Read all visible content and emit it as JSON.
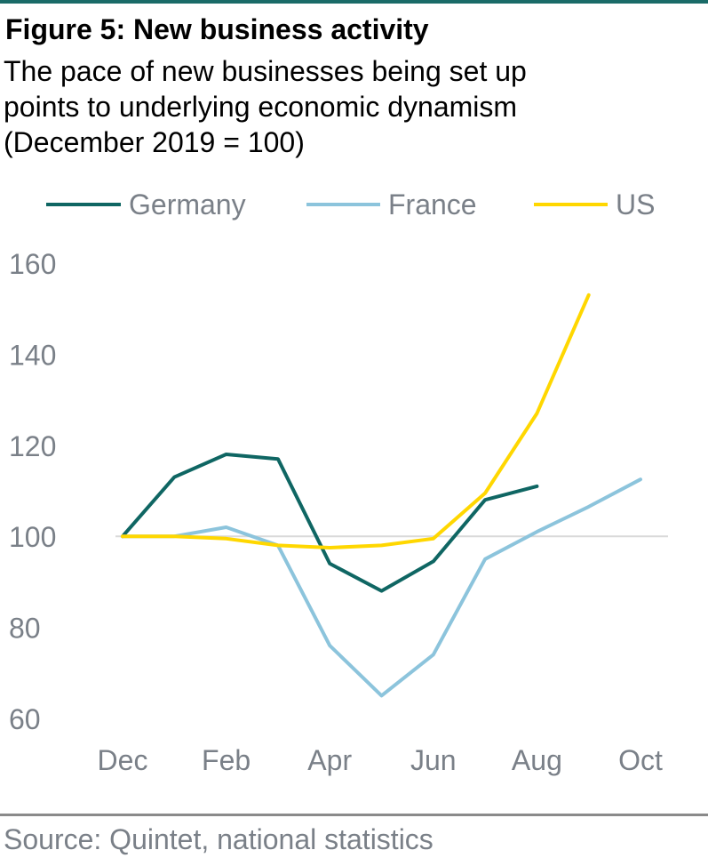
{
  "title": "Figure 5: New business activity",
  "subtitle_lines": [
    "The pace of new businesses being set up",
    "points to underlying economic dynamism",
    "(December 2019 = 100)"
  ],
  "source": "Source: Quintet, national statistics",
  "colors": {
    "Germany": "#0f6663",
    "France": "#8cc4dc",
    "US": "#ffd700",
    "reference_line": "#d9d9d9",
    "axis_text": "#7a8088",
    "top_rule": "#1a6b68"
  },
  "chart_data": {
    "type": "line",
    "title": "Figure 5: New business activity",
    "x": [
      "Dec",
      "Jan",
      "Feb",
      "Mar",
      "Apr",
      "May",
      "Jun",
      "Jul",
      "Aug",
      "Sep",
      "Oct"
    ],
    "x_tick_labels": [
      "Dec",
      "Feb",
      "Apr",
      "Jun",
      "Aug",
      "Oct"
    ],
    "y_ticks": [
      60,
      80,
      100,
      120,
      140,
      160
    ],
    "ylim": [
      60,
      160
    ],
    "reference_line": 100,
    "grid": false,
    "legend_position": "top",
    "series": [
      {
        "name": "Germany",
        "values": [
          100,
          113,
          118,
          117,
          94,
          88,
          94.5,
          108,
          111,
          null,
          null
        ]
      },
      {
        "name": "France",
        "values": [
          100,
          100,
          102,
          98,
          76,
          65,
          74,
          95,
          101,
          106.5,
          112.5
        ]
      },
      {
        "name": "US",
        "values": [
          100,
          100,
          99.5,
          98,
          97.5,
          98,
          99.5,
          109.5,
          127,
          153,
          null
        ]
      }
    ]
  }
}
